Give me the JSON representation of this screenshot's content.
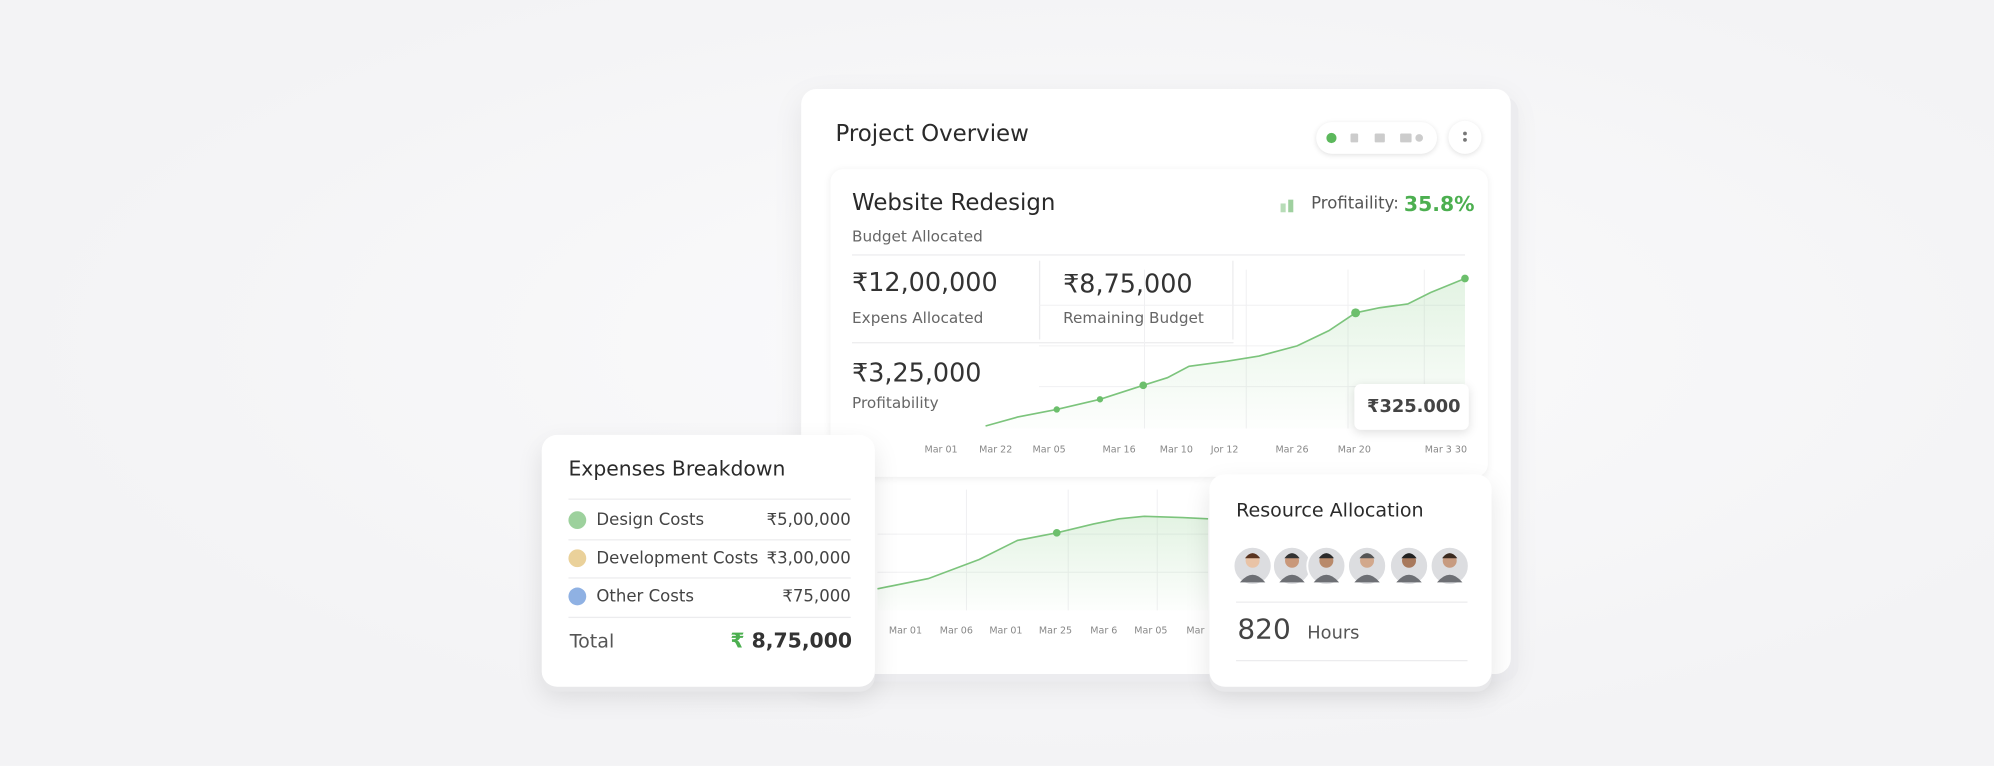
{
  "header": {
    "title": "Project Overview"
  },
  "project": {
    "name": "Website Redesign",
    "profitability_label": "Profitaility:",
    "profitability_value": "35.8%",
    "subtitle": "Budget Allocated",
    "stats": [
      {
        "value": "₹12,00,000",
        "label": "Expens Allocated"
      },
      {
        "value": "₹8,75,000",
        "label": "Remaining Budget"
      },
      {
        "value": "₹3,25,000",
        "label": "Profitability"
      }
    ]
  },
  "chart1": {
    "x_labels": [
      "Mar 01",
      "Mar 22",
      "Mar 05",
      "Mar 16",
      "Mar 10",
      "Jor 12",
      "Mar 26",
      "Mar 20",
      "Mar 3 30"
    ],
    "tooltip": "₹325.000"
  },
  "chart2": {
    "x_labels": [
      "Mar 01",
      "Mar 06",
      "Mar 01",
      "Mar 25",
      "Mar 6",
      "Mar 05",
      "Mar"
    ]
  },
  "expenses": {
    "title": "Expenses Breakdown",
    "items": [
      {
        "label": "Design Costs",
        "value": "₹5,00,000"
      },
      {
        "label": "Development Costs",
        "value": "₹3,00,000"
      },
      {
        "label": "Other Costs",
        "value": "₹75,000"
      }
    ],
    "total_label": "Total",
    "total_currency": "₹",
    "total_value": "8,75,000"
  },
  "resources": {
    "title": "Resource Allocation",
    "hours": "820",
    "hours_unit": "Hours"
  }
}
